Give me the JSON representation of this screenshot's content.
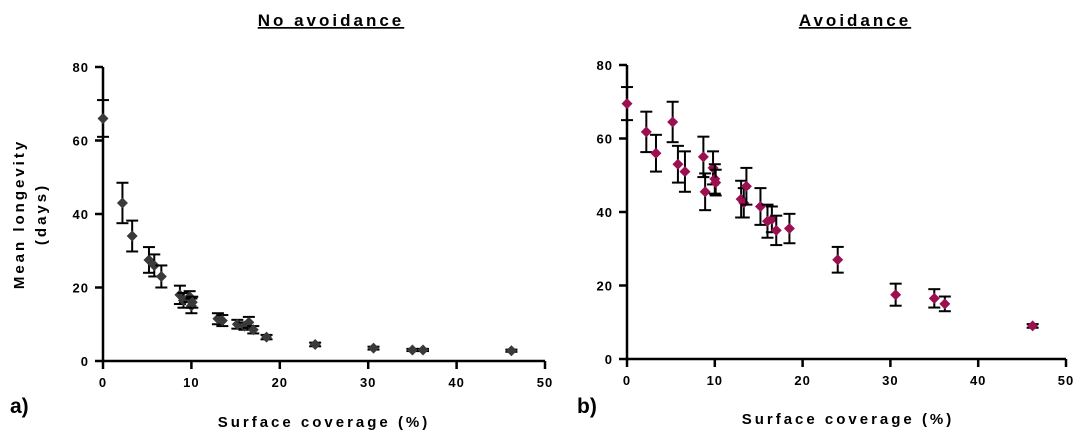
{
  "chart_data": [
    {
      "type": "scatter",
      "panel_label": "a)",
      "title": "No avoidance",
      "xlabel": "Surface coverage (%)",
      "ylabel": [
        "Mean longevity",
        "(days)"
      ],
      "xlim": [
        0,
        50
      ],
      "ylim": [
        0,
        80
      ],
      "xticks": [
        "0",
        "10",
        "20",
        "30",
        "40",
        "50"
      ],
      "yticks": [
        "0",
        "20",
        "40",
        "60",
        "80"
      ],
      "grid": false,
      "marker": "diamond",
      "color": "#3a3a3a",
      "points": [
        {
          "x": 0.0,
          "y": 66.0,
          "err": 5.0
        },
        {
          "x": 2.2,
          "y": 43.0,
          "err": 5.5
        },
        {
          "x": 3.3,
          "y": 34.0,
          "err": 4.2
        },
        {
          "x": 5.2,
          "y": 27.5,
          "err": 3.5
        },
        {
          "x": 5.8,
          "y": 26.0,
          "err": 3.0
        },
        {
          "x": 6.6,
          "y": 23.0,
          "err": 3.0
        },
        {
          "x": 8.7,
          "y": 18.0,
          "err": 2.5
        },
        {
          "x": 9.1,
          "y": 16.5,
          "err": 2.0
        },
        {
          "x": 9.8,
          "y": 17.5,
          "err": 1.5
        },
        {
          "x": 10.0,
          "y": 15.0,
          "err": 2.0
        },
        {
          "x": 10.1,
          "y": 16.0,
          "err": 1.5
        },
        {
          "x": 13.0,
          "y": 11.5,
          "err": 1.5
        },
        {
          "x": 13.5,
          "y": 11.0,
          "err": 1.5
        },
        {
          "x": 15.2,
          "y": 10.0,
          "err": 1.2
        },
        {
          "x": 16.0,
          "y": 9.5,
          "err": 1.0
        },
        {
          "x": 16.5,
          "y": 10.5,
          "err": 1.5
        },
        {
          "x": 17.0,
          "y": 8.5,
          "err": 1.0
        },
        {
          "x": 18.5,
          "y": 6.5,
          "err": 0.6
        },
        {
          "x": 24.0,
          "y": 4.5,
          "err": 0.5
        },
        {
          "x": 30.6,
          "y": 3.5,
          "err": 0.4
        },
        {
          "x": 35.0,
          "y": 3.0,
          "err": 0.3
        },
        {
          "x": 36.2,
          "y": 3.0,
          "err": 0.3
        },
        {
          "x": 46.2,
          "y": 2.8,
          "err": 0.3
        }
      ]
    },
    {
      "type": "scatter",
      "panel_label": "b)",
      "title": "Avoidance",
      "xlabel": "Surface coverage (%)",
      "ylabel": [],
      "xlim": [
        0,
        50
      ],
      "ylim": [
        0,
        80
      ],
      "xticks": [
        "0",
        "10",
        "20",
        "30",
        "40",
        "50"
      ],
      "yticks": [
        "0",
        "20",
        "40",
        "60",
        "80"
      ],
      "grid": false,
      "marker": "diamond",
      "color": "#9b1050",
      "points": [
        {
          "x": 0.0,
          "y": 69.5,
          "err": 4.5
        },
        {
          "x": 2.2,
          "y": 61.8,
          "err": 5.5
        },
        {
          "x": 3.3,
          "y": 56.0,
          "err": 5.0
        },
        {
          "x": 5.2,
          "y": 64.5,
          "err": 5.5
        },
        {
          "x": 5.8,
          "y": 53.0,
          "err": 5.0
        },
        {
          "x": 6.6,
          "y": 51.0,
          "err": 5.5
        },
        {
          "x": 8.7,
          "y": 55.0,
          "err": 5.5
        },
        {
          "x": 8.9,
          "y": 45.5,
          "err": 5.0
        },
        {
          "x": 9.8,
          "y": 52.0,
          "err": 4.5
        },
        {
          "x": 10.0,
          "y": 49.0,
          "err": 4.0
        },
        {
          "x": 10.1,
          "y": 48.0,
          "err": 3.5
        },
        {
          "x": 13.0,
          "y": 43.5,
          "err": 5.0
        },
        {
          "x": 13.3,
          "y": 42.5,
          "err": 4.0
        },
        {
          "x": 13.6,
          "y": 47.0,
          "err": 5.0
        },
        {
          "x": 15.2,
          "y": 41.5,
          "err": 5.0
        },
        {
          "x": 16.0,
          "y": 37.5,
          "err": 4.5
        },
        {
          "x": 16.5,
          "y": 38.0,
          "err": 3.5
        },
        {
          "x": 17.0,
          "y": 35.0,
          "err": 4.0
        },
        {
          "x": 18.5,
          "y": 35.5,
          "err": 4.0
        },
        {
          "x": 24.0,
          "y": 27.0,
          "err": 3.5
        },
        {
          "x": 30.6,
          "y": 17.5,
          "err": 3.0
        },
        {
          "x": 35.0,
          "y": 16.5,
          "err": 2.5
        },
        {
          "x": 36.2,
          "y": 15.0,
          "err": 2.0
        },
        {
          "x": 46.2,
          "y": 9.0,
          "err": 0.5
        }
      ]
    }
  ]
}
